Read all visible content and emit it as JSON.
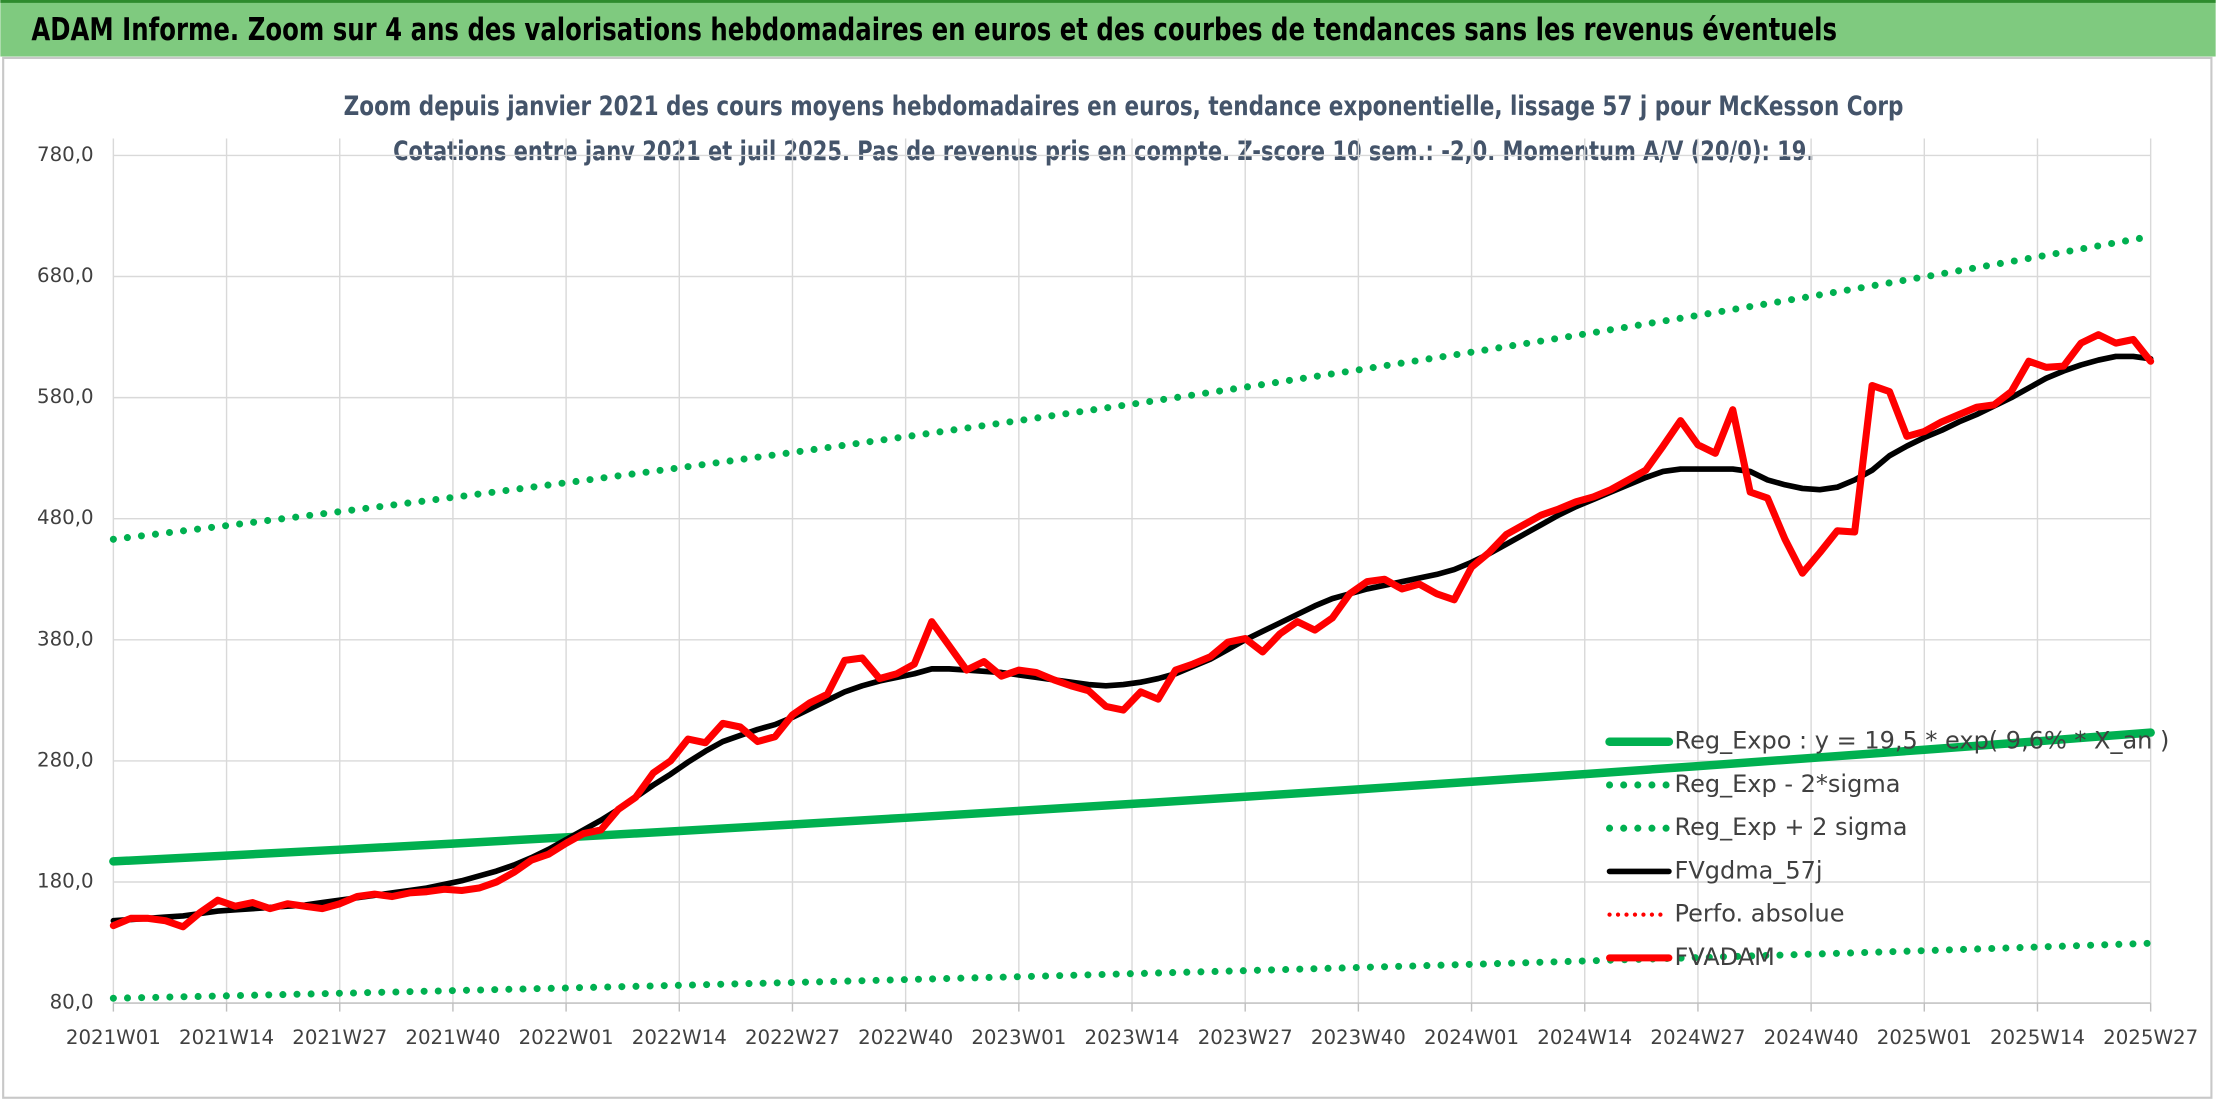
{
  "header": "ADAM Informe. Zoom sur 4 ans des valorisations hebdomadaires en euros et des courbes de tendances sans les revenus éventuels",
  "chart_data": {
    "type": "line",
    "title": "Zoom depuis janvier 2021 des cours moyens hebdomadaires en euros, tendance exponentielle, lissage 57 j pour McKesson Corp",
    "subtitle": "Cotations entre janv 2021 et juil 2025. Pas de revenus pris en compte. Z-score 10 sem.: -2,0. Momentum A/V (20/0): 19.",
    "xlim": [
      "2021W01",
      "2025W27"
    ],
    "xticks": [
      "2021W01",
      "2021W14",
      "2021W27",
      "2021W40",
      "2022W01",
      "2022W14",
      "2022W27",
      "2022W40",
      "2023W01",
      "2023W14",
      "2023W27",
      "2023W40",
      "2024W01",
      "2024W14",
      "2024W27",
      "2024W40",
      "2025W01",
      "2025W14",
      "2025W27"
    ],
    "ylim": [
      80,
      780
    ],
    "yticks": [
      {
        "value": 80,
        "label": "80,0"
      },
      {
        "value": 180,
        "label": "180,0"
      },
      {
        "value": 280,
        "label": "280,0"
      },
      {
        "value": 380,
        "label": "380,0"
      },
      {
        "value": 480,
        "label": "480,0"
      },
      {
        "value": 580,
        "label": "580,0"
      },
      {
        "value": 680,
        "label": "680,0"
      },
      {
        "value": 780,
        "label": "780,0"
      }
    ],
    "grid": true,
    "legend": "lower right",
    "x": [
      "2021W01",
      "2021W03",
      "2021W05",
      "2021W07",
      "2021W09",
      "2021W11",
      "2021W13",
      "2021W15",
      "2021W17",
      "2021W19",
      "2021W21",
      "2021W23",
      "2021W25",
      "2021W27",
      "2021W29",
      "2021W31",
      "2021W33",
      "2021W35",
      "2021W37",
      "2021W39",
      "2021W41",
      "2021W43",
      "2021W45",
      "2021W47",
      "2021W49",
      "2021W51",
      "2022W01",
      "2022W03",
      "2022W05",
      "2022W07",
      "2022W09",
      "2022W11",
      "2022W13",
      "2022W15",
      "2022W17",
      "2022W19",
      "2022W21",
      "2022W23",
      "2022W25",
      "2022W27",
      "2022W29",
      "2022W31",
      "2022W33",
      "2022W35",
      "2022W37",
      "2022W39",
      "2022W41",
      "2022W43",
      "2022W45",
      "2022W47",
      "2022W49",
      "2022W51",
      "2023W01",
      "2023W03",
      "2023W05",
      "2023W07",
      "2023W09",
      "2023W11",
      "2023W13",
      "2023W15",
      "2023W17",
      "2023W19",
      "2023W21",
      "2023W23",
      "2023W25",
      "2023W27",
      "2023W29",
      "2023W31",
      "2023W33",
      "2023W35",
      "2023W37",
      "2023W39",
      "2023W41",
      "2023W43",
      "2023W45",
      "2023W47",
      "2023W49",
      "2023W51",
      "2024W01",
      "2024W03",
      "2024W05",
      "2024W07",
      "2024W09",
      "2024W11",
      "2024W13",
      "2024W15",
      "2024W17",
      "2024W19",
      "2024W21",
      "2024W23",
      "2024W25",
      "2024W27",
      "2024W29",
      "2024W31",
      "2024W33",
      "2024W35",
      "2024W37",
      "2024W39",
      "2024W41",
      "2024W43",
      "2024W45",
      "2024W47",
      "2024W49",
      "2024W51",
      "2025W01",
      "2025W03",
      "2025W05",
      "2025W07",
      "2025W09",
      "2025W11",
      "2025W13",
      "2025W15",
      "2025W17",
      "2025W19",
      "2025W21",
      "2025W23",
      "2025W25",
      "2025W27"
    ],
    "series": [
      {
        "name": "Reg_Expo : y = 19,5 * exp( 9,6% *  X_an )",
        "color": "#00b050",
        "style": "solid",
        "width": 6,
        "x": [
          "2021W01",
          "2021W14",
          "2021W27",
          "2021W40",
          "2022W01",
          "2022W14",
          "2022W27",
          "2022W40",
          "2023W01",
          "2023W14",
          "2023W27",
          "2023W40",
          "2024W01",
          "2024W14",
          "2024W27",
          "2024W40",
          "2025W01",
          "2025W14",
          "2025W27"
        ],
        "values": [
          197,
          201.8,
          206.7,
          211.7,
          216.9,
          222.1,
          227.5,
          233.0,
          238.7,
          244.5,
          250.4,
          256.5,
          262.8,
          269.1,
          275.7,
          282.4,
          289.2,
          296.2,
          303.4
        ]
      },
      {
        "name": "Reg_Exp - 2*sigma",
        "color": "#00b050",
        "style": "dotted",
        "width": 5,
        "x": [
          "2021W01",
          "2021W14",
          "2021W27",
          "2021W40",
          "2022W01",
          "2022W14",
          "2022W27",
          "2022W40",
          "2023W01",
          "2023W14",
          "2023W27",
          "2023W40",
          "2024W01",
          "2024W14",
          "2024W27",
          "2024W40",
          "2025W01",
          "2025W14",
          "2025W27"
        ],
        "values": [
          84,
          86.0,
          88.1,
          90.3,
          92.5,
          94.7,
          97.0,
          99.4,
          101.8,
          104.3,
          106.8,
          109.4,
          112.0,
          114.8,
          117.6,
          120.4,
          123.3,
          126.3,
          129.4
        ]
      },
      {
        "name": "Reg_Exp + 2 sigma",
        "color": "#00b050",
        "style": "dotted",
        "width": 5,
        "x": [
          "2021W01",
          "2021W14",
          "2021W27",
          "2021W40",
          "2022W01",
          "2022W14",
          "2022W27",
          "2022W40",
          "2023W01",
          "2023W14",
          "2023W27",
          "2023W40",
          "2024W01",
          "2024W14",
          "2024W27",
          "2024W40",
          "2025W01",
          "2025W14",
          "2025W27"
        ],
        "values": [
          463,
          474.3,
          485.8,
          497.6,
          509.7,
          522.0,
          534.7,
          547.7,
          561.0,
          574.6,
          588.6,
          602.9,
          617.5,
          632.5,
          647.9,
          663.6,
          679.7,
          696.2,
          713.1
        ]
      },
      {
        "name": "FVgdma_57j",
        "color": "#000000",
        "style": "solid",
        "width": 4,
        "values": [
          148,
          149,
          150,
          151,
          152,
          154,
          156,
          157,
          158,
          159,
          160,
          161,
          163,
          165,
          167,
          169,
          171,
          173,
          175,
          178,
          181,
          185,
          189,
          194,
          200,
          207,
          215,
          223,
          231,
          240,
          250,
          260,
          269,
          279,
          288,
          296,
          301,
          306,
          310,
          316,
          323,
          330,
          337,
          342,
          346,
          349,
          352,
          356,
          356,
          355,
          354,
          353,
          351,
          349,
          347,
          345,
          343,
          342,
          343,
          345,
          348,
          352,
          358,
          364,
          372,
          380,
          387,
          394,
          401,
          408,
          414,
          418,
          422,
          425,
          428,
          431,
          434,
          438,
          444,
          451,
          459,
          467,
          475,
          483,
          490,
          496,
          502,
          508,
          514,
          519,
          521,
          521,
          521,
          521,
          519,
          512,
          508,
          505,
          504,
          506,
          512,
          520,
          532,
          540,
          547,
          553,
          560,
          566,
          573,
          580,
          588,
          596,
          602,
          607,
          611,
          614,
          614,
          612
        ]
      },
      {
        "name": "Perfo. absolue",
        "color": "#ff0000",
        "style": "dotted",
        "width": 3
      },
      {
        "name": "FVADAM",
        "color": "#ff0000",
        "style": "solid",
        "width": 5,
        "values": [
          144,
          150,
          150,
          148,
          143,
          155,
          165,
          160,
          163,
          158,
          162,
          160,
          158,
          162,
          168,
          170,
          168,
          171,
          172,
          174,
          173,
          175,
          180,
          188,
          198,
          203,
          212,
          220,
          223,
          240,
          250,
          270,
          280,
          298,
          295,
          311,
          308,
          296,
          300,
          318,
          328,
          335,
          363,
          365,
          348,
          352,
          360,
          395,
          375,
          355,
          362,
          350,
          355,
          353,
          347,
          342,
          338,
          325,
          322,
          337,
          331,
          355,
          360,
          366,
          378,
          381,
          370,
          385,
          395,
          388,
          398,
          418,
          428,
          430,
          422,
          426,
          418,
          413,
          440,
          452,
          467,
          475,
          483,
          488,
          494,
          498,
          504,
          512,
          520,
          540,
          561,
          541,
          534,
          570,
          502,
          497,
          463,
          435,
          452,
          470,
          469,
          590,
          585,
          548,
          552,
          560,
          566,
          572,
          574,
          585,
          610,
          605,
          606,
          625,
          632,
          625,
          628,
          610
        ]
      }
    ]
  }
}
